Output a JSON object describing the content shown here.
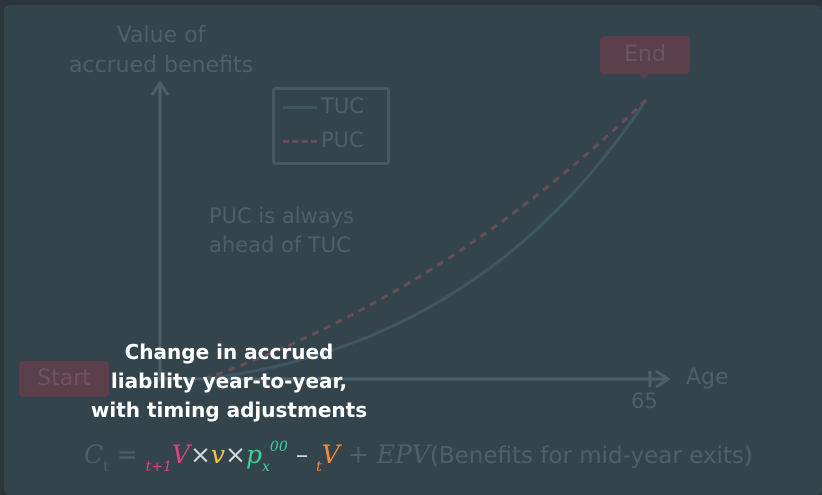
{
  "axis": {
    "y_label_line1": "Value of",
    "y_label_line2": "accrued benefits",
    "x_label": "Age",
    "x_tick": "65"
  },
  "legend": {
    "tuc": "TUC",
    "puc": "PUC"
  },
  "note": {
    "line1": "PUC is always",
    "line2": "ahead of TUC"
  },
  "tags": {
    "start": "Start",
    "end": "End"
  },
  "caption": {
    "line1": "Change in accrued",
    "line2": "liability year-to-year,",
    "line3": "with timing adjustments"
  },
  "formula": {
    "lhs": "C",
    "lhs_sub": "t",
    "eq": "=",
    "term1_sub": "t+1",
    "term1": "V",
    "times": "×",
    "term2": "v",
    "term3": "p",
    "term3_sub": "x",
    "term3_sup": "00",
    "minus": "–",
    "term4_sub": "t",
    "term4": "V",
    "plus": "+",
    "epv": "EPV",
    "rest": "(Benefits for mid-year exits)"
  },
  "colors": {
    "tuc_line": "#3f5663",
    "puc_line": "#6a4c58",
    "term1": "#e0427f",
    "term2": "#f2c43c",
    "term3": "#3fcf9a",
    "term4": "#f08a3c"
  }
}
